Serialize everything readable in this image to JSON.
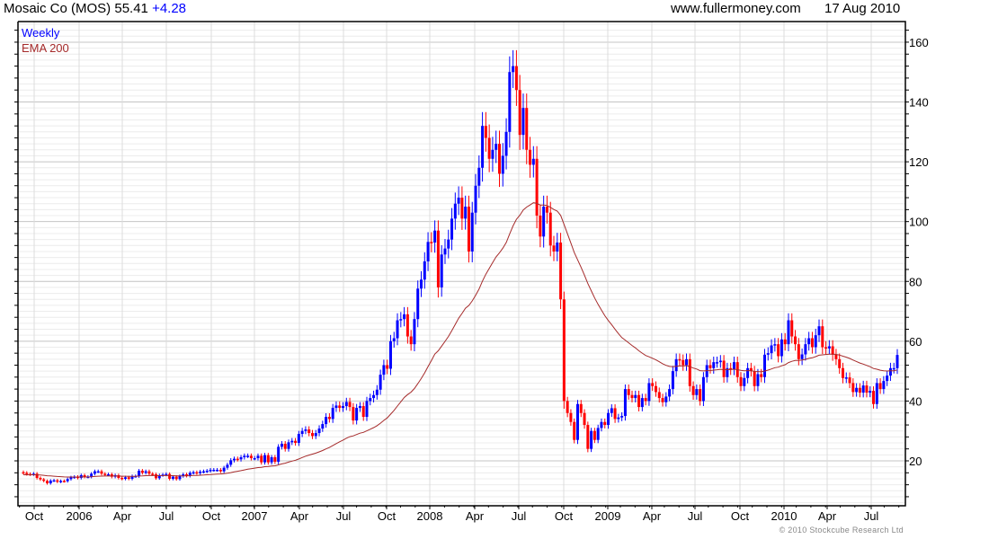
{
  "header": {
    "title": "Mosaic Co (MOS) 55.41",
    "change": "+4.28",
    "site": "www.fullermoney.com",
    "date": "17 Aug 2010"
  },
  "legend": {
    "period": "Weekly",
    "indicator": "EMA 200"
  },
  "footer": "© 2010 Stockcube Research Ltd",
  "colors": {
    "up": "#0000ff",
    "down": "#ff0000",
    "ema": "#a52a2a",
    "change": "#0000ff"
  },
  "chart_data": {
    "type": "candlestick",
    "title": "Mosaic Co (MOS) 55.41 +4.28",
    "frequency": "weekly",
    "ylim": [
      5,
      167
    ],
    "y_ticks": [
      20,
      40,
      60,
      80,
      100,
      120,
      140,
      160
    ],
    "x_ticks": [
      "Oct",
      "2006",
      "Apr",
      "Jul",
      "Oct",
      "2007",
      "Apr",
      "Jul",
      "Oct",
      "2008",
      "Apr",
      "Jul",
      "Oct",
      "2009",
      "Apr",
      "Jul",
      "Oct",
      "2010",
      "Apr",
      "Jul"
    ],
    "grid": true,
    "legend_position": "top-left",
    "first_open": 16.2,
    "overlay": {
      "name": "EMA 200",
      "type": "ema",
      "period_days": 200
    },
    "closes": [
      16,
      15.6,
      15.5,
      15.7,
      14.3,
      13.8,
      13.3,
      12.5,
      13.4,
      13.5,
      13,
      13.3,
      13.2,
      13.9,
      14.5,
      14.7,
      14.3,
      15.2,
      14.7,
      14.7,
      15.7,
      16.5,
      16.5,
      15.7,
      15.5,
      15.5,
      14.7,
      15.2,
      14.3,
      14,
      14.5,
      14,
      14.9,
      14.9,
      16.7,
      16,
      16.5,
      15.7,
      15.5,
      14.2,
      15.2,
      15.4,
      15.6,
      14,
      14.7,
      13.9,
      14.9,
      15.5,
      15,
      16,
      16.2,
      15.9,
      16.4,
      16.5,
      16.7,
      17,
      17,
      17,
      16.5,
      17.7,
      18.7,
      20.2,
      20.7,
      20.5,
      21.2,
      21.7,
      21.7,
      20.9,
      20.9,
      21.7,
      19.5,
      21.9,
      19.5,
      21.2,
      19.7,
      24.7,
      25.7,
      24,
      26.2,
      26.7,
      26,
      29,
      30,
      30.5,
      29.3,
      28.3,
      29.3,
      30.8,
      32.3,
      34.7,
      34,
      37.7,
      38.5,
      37.7,
      38.3,
      39.7,
      38,
      33.5,
      37.7,
      38.3,
      34.7,
      40,
      41,
      42,
      43.8,
      48.8,
      52,
      50.8,
      60,
      61,
      67,
      67.4,
      69,
      61.6,
      59,
      67.4,
      77.6,
      80.6,
      86.7,
      93.2,
      93,
      97,
      78,
      89,
      91,
      94,
      101,
      106,
      108,
      101,
      105,
      90,
      103,
      112,
      118,
      132,
      128,
      121,
      124,
      126,
      116,
      122,
      130,
      150,
      152,
      144,
      129,
      138,
      124,
      119,
      121,
      102,
      95,
      105,
      103,
      92,
      90,
      93,
      74,
      40,
      36,
      33,
      27,
      39,
      36,
      32,
      24,
      30,
      27,
      31,
      33,
      32,
      36,
      37.6,
      34,
      34.5,
      35,
      44,
      42,
      41,
      42,
      38,
      41,
      40,
      46,
      45,
      43,
      41,
      39.6,
      41.5,
      44,
      50,
      54,
      53.7,
      52,
      54,
      45,
      42,
      44,
      40,
      48,
      52,
      51,
      53,
      53,
      53.5,
      48,
      51,
      50.5,
      53,
      48,
      45,
      47.7,
      51,
      50,
      45,
      49,
      48,
      55.5,
      56,
      58.6,
      59,
      55,
      60.6,
      59,
      67,
      61.6,
      59,
      54,
      55.6,
      59,
      61,
      58,
      62,
      65,
      58,
      57.6,
      58.3,
      55.5,
      54,
      51,
      47.7,
      47.9,
      46,
      43,
      44.4,
      42.8,
      45.2,
      42.8,
      43.4,
      39,
      46,
      44,
      46.7,
      48.5,
      51,
      51,
      55.41
    ]
  }
}
